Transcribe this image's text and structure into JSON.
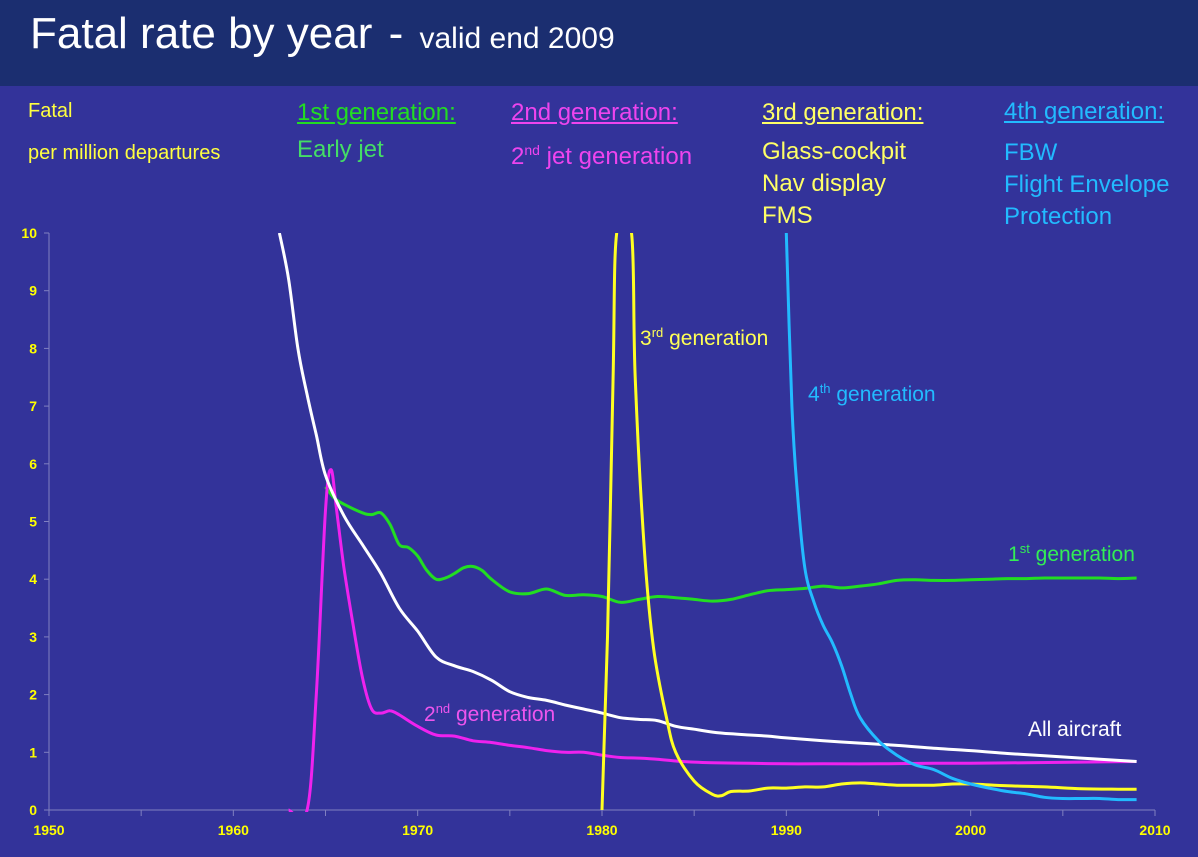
{
  "header": {
    "title_main": "Fatal rate by year",
    "title_dash": "-",
    "title_sub": "valid end 2009"
  },
  "y_axis_label": {
    "line1": "Fatal",
    "line2": "per million departures"
  },
  "legend": {
    "gen1": {
      "heading": "1st generation:",
      "line1": "Early jet",
      "color": "#22dd22"
    },
    "gen2": {
      "heading": "2nd generation:",
      "line1_prefix": "2",
      "line1_sup": "nd",
      "line1_rest": " jet generation",
      "color": "#ee33ee"
    },
    "gen3": {
      "heading": "3rd generation:",
      "line1": "Glass-cockpit",
      "line2": "Nav display",
      "line3": "FMS",
      "color": "#ffff33"
    },
    "gen4": {
      "heading": "4th generation:",
      "line1": "FBW",
      "line2": "Flight Envelope",
      "line3": "Protection",
      "color": "#22bbff"
    }
  },
  "chart_data": {
    "type": "line",
    "title": "Fatal rate by year - valid end 2009",
    "xlabel": "",
    "ylabel": "Fatal per million departures",
    "xlim": [
      1950,
      2010
    ],
    "ylim": [
      0,
      10
    ],
    "x_ticks": [
      1950,
      1960,
      1970,
      1980,
      1990,
      2000,
      2010
    ],
    "y_ticks": [
      0,
      1,
      2,
      3,
      4,
      5,
      6,
      7,
      8,
      9,
      10
    ],
    "series": [
      {
        "name": "1st generation",
        "label": {
          "base": "1",
          "sup": "st",
          "rest": " generation"
        },
        "color": "#22dd22",
        "points": [
          [
            1965,
            5.6
          ],
          [
            1965.5,
            5.4
          ],
          [
            1966,
            5.3
          ],
          [
            1967,
            5.15
          ],
          [
            1967.5,
            5.12
          ],
          [
            1968,
            5.15
          ],
          [
            1968.5,
            4.95
          ],
          [
            1969,
            4.6
          ],
          [
            1969.5,
            4.55
          ],
          [
            1970,
            4.4
          ],
          [
            1970.5,
            4.15
          ],
          [
            1971,
            4.0
          ],
          [
            1971.5,
            4.02
          ],
          [
            1972,
            4.1
          ],
          [
            1972.5,
            4.2
          ],
          [
            1973,
            4.22
          ],
          [
            1973.5,
            4.15
          ],
          [
            1974,
            4.0
          ],
          [
            1975,
            3.78
          ],
          [
            1976,
            3.75
          ],
          [
            1977,
            3.83
          ],
          [
            1978,
            3.72
          ],
          [
            1979,
            3.73
          ],
          [
            1980,
            3.7
          ],
          [
            1981,
            3.6
          ],
          [
            1982,
            3.65
          ],
          [
            1983,
            3.7
          ],
          [
            1984,
            3.68
          ],
          [
            1985,
            3.65
          ],
          [
            1986,
            3.62
          ],
          [
            1987,
            3.65
          ],
          [
            1988,
            3.73
          ],
          [
            1989,
            3.8
          ],
          [
            1990,
            3.82
          ],
          [
            1991,
            3.84
          ],
          [
            1992,
            3.88
          ],
          [
            1993,
            3.85
          ],
          [
            1994,
            3.88
          ],
          [
            1995,
            3.92
          ],
          [
            1996,
            3.98
          ],
          [
            1997,
            3.99
          ],
          [
            1998,
            3.98
          ],
          [
            1999,
            3.98
          ],
          [
            2000,
            3.99
          ],
          [
            2001,
            4.0
          ],
          [
            2002,
            4.01
          ],
          [
            2003,
            4.01
          ],
          [
            2004,
            4.02
          ],
          [
            2005,
            4.02
          ],
          [
            2006,
            4.02
          ],
          [
            2007,
            4.02
          ],
          [
            2008,
            4.01
          ],
          [
            2009,
            4.02
          ]
        ]
      },
      {
        "name": "2nd generation",
        "label": {
          "base": "2",
          "sup": "nd",
          "rest": " generation"
        },
        "color": "#ee22ee",
        "points": [
          [
            1963,
            0
          ],
          [
            1964,
            0
          ],
          [
            1964.5,
            2.0
          ],
          [
            1965,
            5.2
          ],
          [
            1965.3,
            5.9
          ],
          [
            1965.6,
            5.2
          ],
          [
            1966,
            4.2
          ],
          [
            1966.5,
            3.2
          ],
          [
            1967,
            2.3
          ],
          [
            1967.5,
            1.75
          ],
          [
            1968,
            1.68
          ],
          [
            1968.5,
            1.72
          ],
          [
            1969,
            1.65
          ],
          [
            1970,
            1.45
          ],
          [
            1971,
            1.3
          ],
          [
            1972,
            1.28
          ],
          [
            1973,
            1.2
          ],
          [
            1974,
            1.17
          ],
          [
            1975,
            1.12
          ],
          [
            1976,
            1.08
          ],
          [
            1977,
            1.03
          ],
          [
            1978,
            1.0
          ],
          [
            1979,
            1.0
          ],
          [
            1980,
            0.95
          ],
          [
            1981,
            0.91
          ],
          [
            1982,
            0.9
          ],
          [
            1983,
            0.88
          ],
          [
            1984,
            0.85
          ],
          [
            1985,
            0.83
          ],
          [
            1986,
            0.82
          ],
          [
            1988,
            0.81
          ],
          [
            1990,
            0.8
          ],
          [
            1992,
            0.8
          ],
          [
            1995,
            0.8
          ],
          [
            1998,
            0.81
          ],
          [
            2000,
            0.81
          ],
          [
            2003,
            0.82
          ],
          [
            2006,
            0.83
          ],
          [
            2009,
            0.84
          ]
        ]
      },
      {
        "name": "3rd generation",
        "label": {
          "base": "3",
          "sup": "rd",
          "rest": " generation"
        },
        "color": "#ffff22",
        "points": [
          [
            1980,
            0
          ],
          [
            1980.3,
            3.0
          ],
          [
            1980.6,
            7.5
          ],
          [
            1980.8,
            10.0
          ],
          [
            1981.6,
            10.0
          ],
          [
            1981.8,
            7.5
          ],
          [
            1982.3,
            4.5
          ],
          [
            1982.8,
            2.8
          ],
          [
            1983.5,
            1.6
          ],
          [
            1984,
            1.0
          ],
          [
            1985,
            0.5
          ],
          [
            1986,
            0.27
          ],
          [
            1986.5,
            0.25
          ],
          [
            1987,
            0.32
          ],
          [
            1988,
            0.33
          ],
          [
            1989,
            0.38
          ],
          [
            1990,
            0.38
          ],
          [
            1991,
            0.4
          ],
          [
            1992,
            0.4
          ],
          [
            1993,
            0.45
          ],
          [
            1994,
            0.47
          ],
          [
            1995,
            0.45
          ],
          [
            1996,
            0.43
          ],
          [
            1997,
            0.43
          ],
          [
            1998,
            0.43
          ],
          [
            1999,
            0.45
          ],
          [
            2000,
            0.45
          ],
          [
            2002,
            0.42
          ],
          [
            2004,
            0.4
          ],
          [
            2006,
            0.37
          ],
          [
            2008,
            0.36
          ],
          [
            2009,
            0.36
          ]
        ]
      },
      {
        "name": "4th generation",
        "label": {
          "base": "4",
          "sup": "th",
          "rest": " generation"
        },
        "color": "#22bbff",
        "points": [
          [
            1990,
            10.0
          ],
          [
            1990.3,
            7.0
          ],
          [
            1990.6,
            5.5
          ],
          [
            1991,
            4.2
          ],
          [
            1991.5,
            3.6
          ],
          [
            1992,
            3.2
          ],
          [
            1992.5,
            2.9
          ],
          [
            1993,
            2.5
          ],
          [
            1993.5,
            2.0
          ],
          [
            1994,
            1.6
          ],
          [
            1995,
            1.2
          ],
          [
            1996,
            0.95
          ],
          [
            1997,
            0.78
          ],
          [
            1998,
            0.7
          ],
          [
            1999,
            0.55
          ],
          [
            2000,
            0.45
          ],
          [
            2001,
            0.38
          ],
          [
            2002,
            0.32
          ],
          [
            2003,
            0.28
          ],
          [
            2004,
            0.22
          ],
          [
            2005,
            0.2
          ],
          [
            2006,
            0.2
          ],
          [
            2007,
            0.2
          ],
          [
            2008,
            0.18
          ],
          [
            2009,
            0.18
          ]
        ]
      },
      {
        "name": "All aircraft",
        "label": {
          "base": "All aircraft",
          "sup": "",
          "rest": ""
        },
        "color": "#ffffff",
        "points": [
          [
            1962.5,
            10.0
          ],
          [
            1963,
            9.2
          ],
          [
            1963.5,
            8.0
          ],
          [
            1964,
            7.2
          ],
          [
            1964.5,
            6.5
          ],
          [
            1965,
            5.8
          ],
          [
            1966,
            5.1
          ],
          [
            1967,
            4.6
          ],
          [
            1968,
            4.1
          ],
          [
            1969,
            3.5
          ],
          [
            1970,
            3.1
          ],
          [
            1971,
            2.65
          ],
          [
            1972,
            2.5
          ],
          [
            1973,
            2.4
          ],
          [
            1974,
            2.25
          ],
          [
            1975,
            2.05
          ],
          [
            1976,
            1.95
          ],
          [
            1977,
            1.9
          ],
          [
            1978,
            1.82
          ],
          [
            1979,
            1.75
          ],
          [
            1980,
            1.68
          ],
          [
            1981,
            1.6
          ],
          [
            1982,
            1.57
          ],
          [
            1983,
            1.55
          ],
          [
            1984,
            1.45
          ],
          [
            1985,
            1.4
          ],
          [
            1986,
            1.35
          ],
          [
            1987,
            1.32
          ],
          [
            1988,
            1.3
          ],
          [
            1989,
            1.28
          ],
          [
            1990,
            1.25
          ],
          [
            1992,
            1.2
          ],
          [
            1994,
            1.16
          ],
          [
            1996,
            1.12
          ],
          [
            1998,
            1.07
          ],
          [
            2000,
            1.03
          ],
          [
            2002,
            0.98
          ],
          [
            2004,
            0.94
          ],
          [
            2006,
            0.9
          ],
          [
            2008,
            0.86
          ],
          [
            2009,
            0.84
          ]
        ]
      }
    ]
  }
}
